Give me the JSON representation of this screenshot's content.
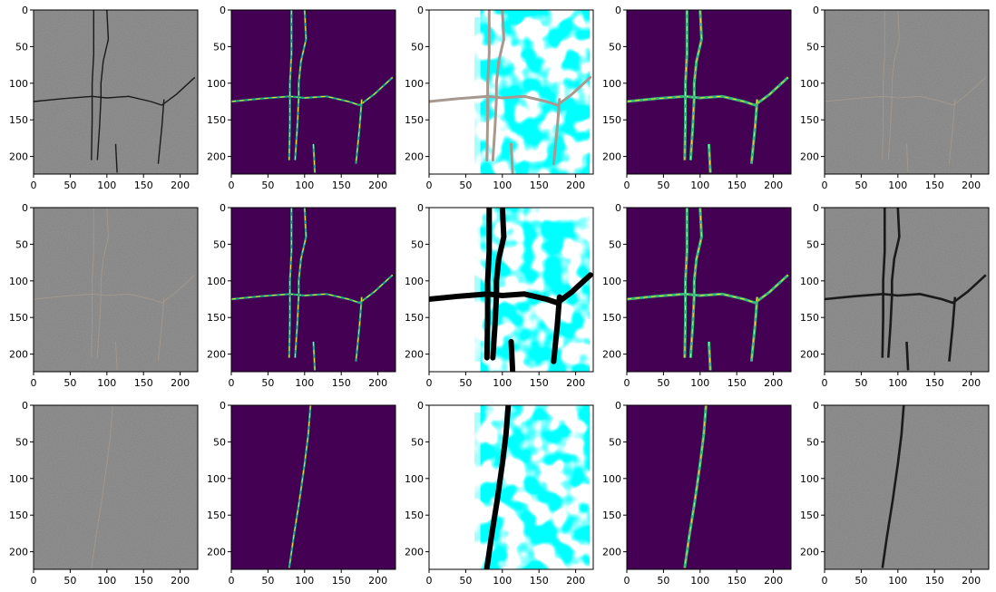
{
  "figure": {
    "rows": 3,
    "cols": 5,
    "x_ticks": [
      "0",
      "50",
      "100",
      "150",
      "200"
    ],
    "y_ticks": [
      "0",
      "50",
      "100",
      "150",
      "200"
    ],
    "x_tick_values": [
      0,
      50,
      100,
      150,
      200
    ],
    "y_tick_values": [
      0,
      50,
      100,
      150,
      200
    ],
    "axis_range": [
      0,
      224
    ],
    "panel_kinds": [
      "gray",
      "mask",
      "saliency",
      "mask-soft",
      "gray-overlay"
    ]
  },
  "colors": {
    "viridis_background": "#440154",
    "viridis_line_light": "#fde725",
    "viridis_line_mid": "#22a884",
    "viridis_line_cyan": "#35b779",
    "saliency_cyan": "#00ffff",
    "saliency_white": "#ffffff",
    "gray_image": "#808080",
    "axis": "#000000"
  },
  "cracks": {
    "row1": [
      [
        [
          0,
          125
        ],
        [
          40,
          121
        ],
        [
          80,
          118
        ],
        [
          100,
          120
        ],
        [
          130,
          118
        ],
        [
          160,
          125
        ],
        [
          175,
          130
        ],
        [
          195,
          115
        ],
        [
          220,
          92
        ]
      ],
      [
        [
          100,
          0
        ],
        [
          102,
          40
        ],
        [
          95,
          70
        ],
        [
          92,
          100
        ],
        [
          92,
          120
        ],
        [
          90,
          160
        ],
        [
          87,
          205
        ]
      ],
      [
        [
          82,
          0
        ],
        [
          82,
          60
        ],
        [
          80,
          100
        ],
        [
          80,
          150
        ],
        [
          79,
          205
        ]
      ],
      [
        [
          178,
          122
        ],
        [
          175,
          160
        ],
        [
          170,
          210
        ]
      ],
      [
        [
          112,
          183
        ],
        [
          114,
          222
        ]
      ]
    ],
    "row2": [
      [
        [
          0,
          125
        ],
        [
          40,
          121
        ],
        [
          80,
          118
        ],
        [
          100,
          120
        ],
        [
          130,
          118
        ],
        [
          160,
          125
        ],
        [
          175,
          130
        ],
        [
          195,
          115
        ],
        [
          220,
          92
        ]
      ],
      [
        [
          100,
          0
        ],
        [
          102,
          40
        ],
        [
          95,
          70
        ],
        [
          92,
          100
        ],
        [
          92,
          120
        ],
        [
          90,
          160
        ],
        [
          87,
          205
        ]
      ],
      [
        [
          82,
          0
        ],
        [
          82,
          60
        ],
        [
          80,
          100
        ],
        [
          80,
          150
        ],
        [
          79,
          205
        ]
      ],
      [
        [
          178,
          122
        ],
        [
          175,
          160
        ],
        [
          170,
          210
        ]
      ],
      [
        [
          112,
          183
        ],
        [
          114,
          222
        ]
      ]
    ],
    "row3": [
      [
        [
          108,
          0
        ],
        [
          105,
          40
        ],
        [
          100,
          80
        ],
        [
          93,
          130
        ],
        [
          85,
          180
        ],
        [
          79,
          222
        ]
      ]
    ]
  }
}
